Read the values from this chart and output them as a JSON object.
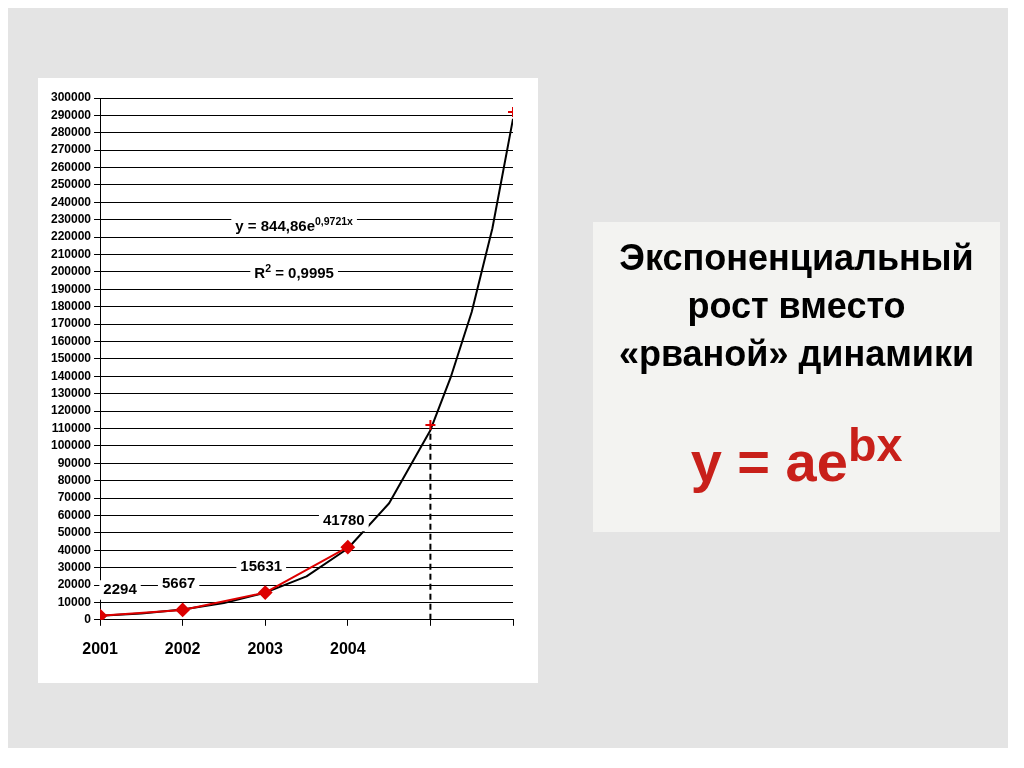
{
  "chart_data": {
    "type": "line",
    "title": "Экспоненциальный рост вместо «рваной» динамики",
    "annotations": [
      "y = 844,86e$^{0,9721x}$",
      "R$^{2}$ = 0,9995",
      "y = ae$^{bx}$"
    ],
    "series": [
      {
        "type": "line",
        "color": "#000000",
        "marker": "none",
        "x": [
          2001,
          2001.5,
          2002,
          2002.5,
          2003,
          2003.5,
          2004,
          2004.5,
          2005,
          2005.25,
          2005.5,
          2005.75,
          2006
        ],
        "values": [
          2300,
          3600,
          5900,
          9600,
          15600,
          25000,
          41000,
          67000,
          109000,
          140000,
          177000,
          225000,
          288000
        ]
      },
      {
        "type": "line",
        "color": "#dd0000",
        "marker": "diamond",
        "x": [
          2001,
          2002,
          2003,
          2004
        ],
        "values": [
          2294,
          5667,
          15631,
          41780
        ],
        "value_labels": [
          "2294",
          "5667",
          "15631",
          "41780"
        ]
      },
      {
        "type": "scatter",
        "color": "#dd0000",
        "marker": "cross",
        "x": [
          2005,
          2006
        ],
        "values": [
          112000,
          292000
        ]
      }
    ],
    "xlim": [
      2001,
      2006
    ],
    "xticks": [
      2001,
      2002,
      2003,
      2004,
      {
        "value": 2005,
        "label": null
      },
      {
        "value": 2006,
        "label": null
      }
    ],
    "ylim": [
      0,
      300000
    ],
    "yticks": [
      0,
      10000,
      20000,
      30000,
      40000,
      50000,
      60000,
      70000,
      80000,
      90000,
      100000,
      110000,
      120000,
      130000,
      140000,
      150000,
      160000,
      170000,
      180000,
      190000,
      200000,
      210000,
      220000,
      230000,
      240000,
      250000,
      260000,
      270000,
      280000,
      290000,
      300000
    ],
    "ref_lines": [
      {
        "axis": "x",
        "value": 2005,
        "color": "#000000",
        "line_style": "dashed"
      }
    ],
    "grid": "y",
    "legend": false
  }
}
